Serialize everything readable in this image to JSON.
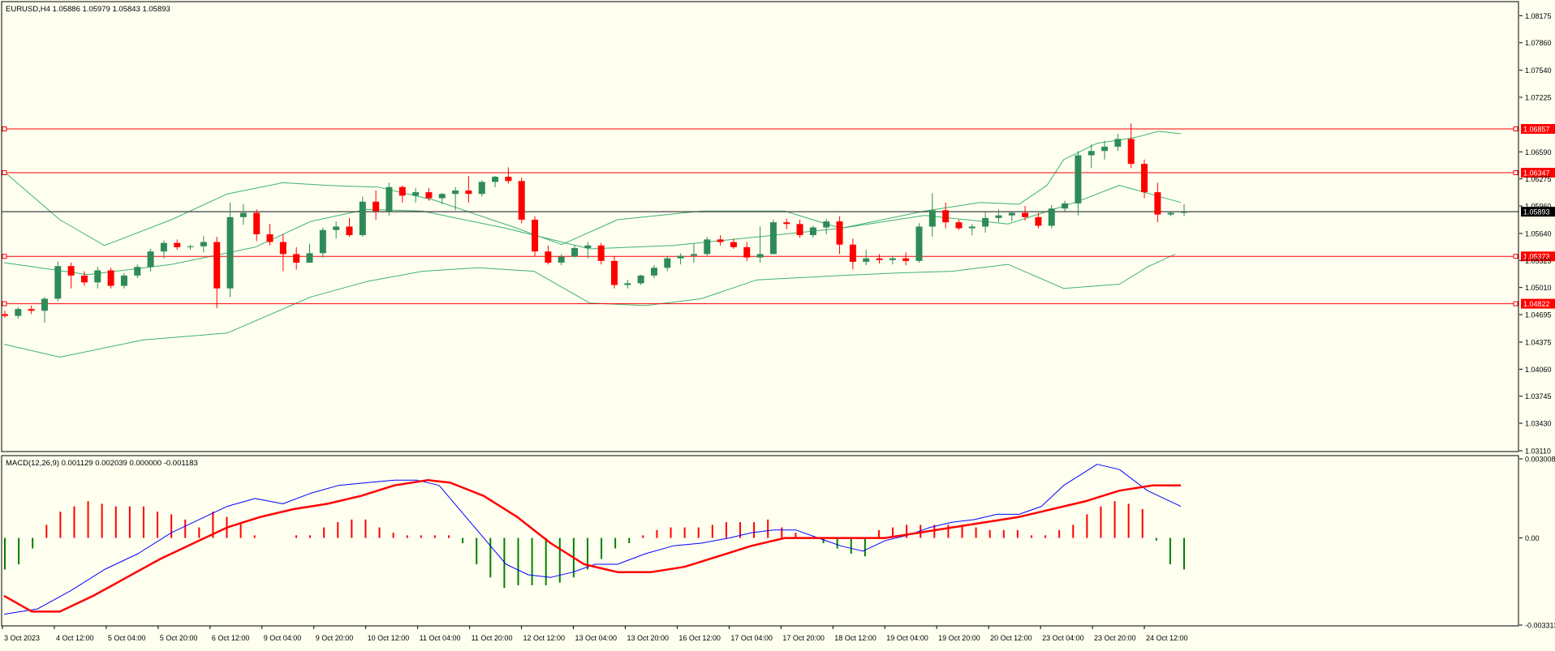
{
  "main_header": "EURUSD,H4  1.05886 1.05979 1.05843 1.05893",
  "macd_header": "MACD(12,26,9) 0.001129 0.002039 0.000000 -0.001183",
  "colors": {
    "background": "#fffff0",
    "bull_candle": "#2e8b57",
    "bear_candle": "#ff0000",
    "bollinger": "#3cb371",
    "level_line": "#ff0000",
    "current_price_line": "#404040",
    "macd_line": "#0000ff",
    "signal_line": "#ff0000",
    "hist_up": "#ff0000",
    "hist_down": "#008000",
    "axis_label_bg_level": "#ff0000",
    "axis_label_bg_current": "#000000"
  },
  "chart_data": [
    {
      "type": "candlestick",
      "symbol": "EURUSD",
      "timeframe": "H4",
      "ylim": [
        1.0311,
        1.0832
      ],
      "y_ticks": [
        "1.08175",
        "1.07860",
        "1.07540",
        "1.07225",
        "1.06590",
        "1.06275",
        "1.05960",
        "1.05640",
        "1.05325",
        "1.05010",
        "1.04695",
        "1.04375",
        "1.04060",
        "1.03745",
        "1.03430",
        "1.03110"
      ],
      "x_ticks": [
        "3 Oct 2023",
        "4 Oct 12:00",
        "5 Oct 04:00",
        "5 Oct 20:00",
        "6 Oct 12:00",
        "9 Oct 04:00",
        "9 Oct 20:00",
        "10 Oct 12:00",
        "11 Oct 04:00",
        "11 Oct 20:00",
        "12 Oct 12:00",
        "13 Oct 04:00",
        "13 Oct 20:00",
        "16 Oct 12:00",
        "17 Oct 04:00",
        "17 Oct 20:00",
        "18 Oct 12:00",
        "19 Oct 04:00",
        "19 Oct 20:00",
        "20 Oct 12:00",
        "23 Oct 04:00",
        "23 Oct 20:00",
        "24 Oct 12:00"
      ],
      "horizontal_levels": [
        "1.06857",
        "1.06347",
        "1.05373",
        "1.04822"
      ],
      "current_price": "1.05893",
      "candles": [
        [
          1.047,
          1.0474,
          1.0466,
          1.0468
        ],
        [
          1.0468,
          1.0478,
          1.0465,
          1.0476
        ],
        [
          1.0476,
          1.048,
          1.047,
          1.0474
        ],
        [
          1.0474,
          1.049,
          1.046,
          1.0488
        ],
        [
          1.0488,
          1.0531,
          1.0485,
          1.0526
        ],
        [
          1.0526,
          1.053,
          1.05,
          1.0515
        ],
        [
          1.0515,
          1.052,
          1.0503,
          1.0507
        ],
        [
          1.0507,
          1.0525,
          1.05,
          1.0521
        ],
        [
          1.0521,
          1.0524,
          1.05,
          1.0503
        ],
        [
          1.0503,
          1.0518,
          1.05,
          1.0515
        ],
        [
          1.0515,
          1.0528,
          1.0512,
          1.0525
        ],
        [
          1.0525,
          1.0546,
          1.052,
          1.0543
        ],
        [
          1.0543,
          1.0556,
          1.0535,
          1.0553
        ],
        [
          1.0553,
          1.0557,
          1.0545,
          1.0548
        ],
        [
          1.0548,
          1.0551,
          1.0545,
          1.0549
        ],
        [
          1.0549,
          1.0561,
          1.0542,
          1.0554
        ],
        [
          1.0554,
          1.056,
          1.0477,
          1.05
        ],
        [
          1.05,
          1.06,
          1.049,
          1.0583
        ],
        [
          1.0583,
          1.0598,
          1.0574,
          1.0588
        ],
        [
          1.0588,
          1.0592,
          1.0555,
          1.0563
        ],
        [
          1.0563,
          1.0575,
          1.055,
          1.0554
        ],
        [
          1.0554,
          1.0563,
          1.052,
          1.054
        ],
        [
          1.054,
          1.0548,
          1.0522,
          1.053
        ],
        [
          1.053,
          1.0552,
          1.053,
          1.0541
        ],
        [
          1.0541,
          1.0571,
          1.0536,
          1.0568
        ],
        [
          1.0568,
          1.0578,
          1.0558,
          1.0572
        ],
        [
          1.0572,
          1.0582,
          1.056,
          1.0562
        ],
        [
          1.0562,
          1.0607,
          1.056,
          1.0601
        ],
        [
          1.0601,
          1.0614,
          1.058,
          1.059
        ],
        [
          1.059,
          1.0623,
          1.0585,
          1.0618
        ],
        [
          1.0618,
          1.062,
          1.06,
          1.0608
        ],
        [
          1.0608,
          1.0617,
          1.06,
          1.0612
        ],
        [
          1.0612,
          1.0617,
          1.0602,
          1.0605
        ],
        [
          1.0605,
          1.0611,
          1.0598,
          1.061
        ],
        [
          1.061,
          1.0618,
          1.0591,
          1.0614
        ],
        [
          1.0614,
          1.0631,
          1.06,
          1.061
        ],
        [
          1.061,
          1.0626,
          1.0607,
          1.0624
        ],
        [
          1.0624,
          1.0631,
          1.0618,
          1.063
        ],
        [
          1.063,
          1.0641,
          1.0622,
          1.0625
        ],
        [
          1.0625,
          1.0629,
          1.0576,
          1.058
        ],
        [
          1.058,
          1.0584,
          1.0537,
          1.0543
        ],
        [
          1.0543,
          1.055,
          1.0528,
          1.053
        ],
        [
          1.053,
          1.054,
          1.0527,
          1.0537
        ],
        [
          1.0537,
          1.055,
          1.0536,
          1.0547
        ],
        [
          1.0547,
          1.0554,
          1.0535,
          1.055
        ],
        [
          1.055,
          1.0553,
          1.0528,
          1.0532
        ],
        [
          1.0532,
          1.0537,
          1.05,
          1.0504
        ],
        [
          1.0504,
          1.051,
          1.05,
          1.0506
        ],
        [
          1.0506,
          1.0516,
          1.0504,
          1.0515
        ],
        [
          1.0515,
          1.0527,
          1.0512,
          1.0524
        ],
        [
          1.0524,
          1.0537,
          1.052,
          1.0535
        ],
        [
          1.0535,
          1.0541,
          1.0528,
          1.0538
        ],
        [
          1.0538,
          1.0552,
          1.053,
          1.054
        ],
        [
          1.054,
          1.056,
          1.0538,
          1.0557
        ],
        [
          1.0557,
          1.0562,
          1.055,
          1.0554
        ],
        [
          1.0554,
          1.0558,
          1.0546,
          1.0548
        ],
        [
          1.0548,
          1.0554,
          1.0532,
          1.0536
        ],
        [
          1.0536,
          1.0572,
          1.053,
          1.054
        ],
        [
          1.054,
          1.058,
          1.054,
          1.0577
        ],
        [
          1.0577,
          1.0581,
          1.0569,
          1.0575
        ],
        [
          1.0575,
          1.058,
          1.0559,
          1.0562
        ],
        [
          1.0562,
          1.0573,
          1.0559,
          1.0571
        ],
        [
          1.0571,
          1.0581,
          1.0563,
          1.0578
        ],
        [
          1.0578,
          1.0584,
          1.054,
          1.0551
        ],
        [
          1.0551,
          1.0558,
          1.0522,
          1.0531
        ],
        [
          1.0531,
          1.0545,
          1.0527,
          1.0535
        ],
        [
          1.0535,
          1.054,
          1.0529,
          1.0533
        ],
        [
          1.0533,
          1.0538,
          1.0528,
          1.0535
        ],
        [
          1.0535,
          1.0542,
          1.0527,
          1.0532
        ],
        [
          1.0532,
          1.0576,
          1.053,
          1.0572
        ],
        [
          1.0572,
          1.0611,
          1.056,
          1.0591
        ],
        [
          1.0591,
          1.06,
          1.057,
          1.0577
        ],
        [
          1.0577,
          1.058,
          1.0568,
          1.057
        ],
        [
          1.057,
          1.0575,
          1.0562,
          1.0572
        ],
        [
          1.0572,
          1.0589,
          1.0565,
          1.0582
        ],
        [
          1.0582,
          1.0592,
          1.0577,
          1.0585
        ],
        [
          1.0585,
          1.059,
          1.0578,
          1.0588
        ],
        [
          1.0588,
          1.0596,
          1.0579,
          1.0583
        ],
        [
          1.0583,
          1.0588,
          1.057,
          1.0573
        ],
        [
          1.0573,
          1.0597,
          1.057,
          1.0593
        ],
        [
          1.0593,
          1.0602,
          1.059,
          1.0599
        ],
        [
          1.0599,
          1.066,
          1.0585,
          1.0655
        ],
        [
          1.0655,
          1.0668,
          1.064,
          1.066
        ],
        [
          1.066,
          1.0672,
          1.065,
          1.0665
        ],
        [
          1.0665,
          1.068,
          1.066,
          1.0674
        ],
        [
          1.0674,
          1.0692,
          1.064,
          1.0645
        ],
        [
          1.0645,
          1.065,
          1.0605,
          1.0612
        ],
        [
          1.0612,
          1.0623,
          1.0577,
          1.0586
        ],
        [
          1.0586,
          1.059,
          1.0584,
          1.0588
        ],
        [
          1.0588,
          1.0598,
          1.0584,
          1.0589
        ]
      ],
      "bollinger_upper": [
        [
          0,
          1.0636
        ],
        [
          10,
          1.058
        ],
        [
          18,
          1.055
        ],
        [
          30,
          1.058
        ],
        [
          40,
          1.061
        ],
        [
          50,
          1.0623
        ],
        [
          58,
          1.062
        ],
        [
          62,
          1.0619
        ],
        [
          67,
          1.0618
        ],
        [
          77,
          1.0603
        ],
        [
          92,
          1.057
        ],
        [
          100,
          1.0551
        ],
        [
          110,
          1.058
        ],
        [
          125,
          1.059
        ],
        [
          140,
          1.059
        ],
        [
          150,
          1.057
        ],
        [
          165,
          1.059
        ],
        [
          175,
          1.06
        ],
        [
          182,
          1.0598
        ],
        [
          187,
          1.062
        ],
        [
          190,
          1.065
        ],
        [
          196,
          1.0669
        ],
        [
          203,
          1.0676
        ],
        [
          207,
          1.0683
        ],
        [
          211,
          1.068
        ]
      ],
      "bollinger_middle": [
        [
          0,
          1.053
        ],
        [
          15,
          1.0516
        ],
        [
          30,
          1.0528
        ],
        [
          45,
          1.0548
        ],
        [
          55,
          1.0578
        ],
        [
          65,
          1.0592
        ],
        [
          75,
          1.059
        ],
        [
          90,
          1.057
        ],
        [
          105,
          1.0546
        ],
        [
          120,
          1.055
        ],
        [
          135,
          1.056
        ],
        [
          150,
          1.057
        ],
        [
          165,
          1.0585
        ],
        [
          180,
          1.0575
        ],
        [
          192,
          1.06
        ],
        [
          200,
          1.062
        ],
        [
          211,
          1.06
        ]
      ],
      "bollinger_lower": [
        [
          0,
          1.0435
        ],
        [
          10,
          1.042
        ],
        [
          25,
          1.044
        ],
        [
          40,
          1.0448
        ],
        [
          55,
          1.049
        ],
        [
          65,
          1.0508
        ],
        [
          75,
          1.052
        ],
        [
          85,
          1.0524
        ],
        [
          95,
          1.052
        ],
        [
          105,
          1.0483
        ],
        [
          115,
          1.048
        ],
        [
          125,
          1.0488
        ],
        [
          135,
          1.051
        ],
        [
          150,
          1.0515
        ],
        [
          160,
          1.0518
        ],
        [
          170,
          1.052
        ],
        [
          180,
          1.0528
        ],
        [
          190,
          1.05
        ],
        [
          200,
          1.0505
        ],
        [
          205,
          1.0525
        ],
        [
          210,
          1.054
        ]
      ]
    },
    {
      "type": "macd",
      "ylim": [
        -0.003313,
        0.003008
      ],
      "y_ticks": [
        "0.003008",
        "0.00",
        "-0.003313"
      ],
      "macd": [
        [
          0,
          -0.0029
        ],
        [
          6,
          -0.0027
        ],
        [
          12,
          -0.002
        ],
        [
          18,
          -0.0012
        ],
        [
          24,
          -0.0006
        ],
        [
          30,
          0.0002
        ],
        [
          36,
          0.0008
        ],
        [
          40,
          0.0012
        ],
        [
          45,
          0.0015
        ],
        [
          50,
          0.0013
        ],
        [
          55,
          0.0017
        ],
        [
          60,
          0.002
        ],
        [
          65,
          0.0021
        ],
        [
          70,
          0.0022
        ],
        [
          74,
          0.0022
        ],
        [
          78,
          0.002
        ],
        [
          82,
          0.001
        ],
        [
          86,
          0.0
        ],
        [
          90,
          -0.001
        ],
        [
          94,
          -0.0014
        ],
        [
          98,
          -0.0015
        ],
        [
          102,
          -0.0013
        ],
        [
          106,
          -0.001
        ],
        [
          110,
          -0.001
        ],
        [
          115,
          -0.0006
        ],
        [
          120,
          -0.0003
        ],
        [
          125,
          -0.0002
        ],
        [
          130,
          0.0
        ],
        [
          134,
          0.0002
        ],
        [
          138,
          0.0003
        ],
        [
          142,
          0.0003
        ],
        [
          146,
          0.0
        ],
        [
          150,
          -0.0003
        ],
        [
          154,
          -0.0005
        ],
        [
          158,
          -0.0001
        ],
        [
          162,
          0.0001
        ],
        [
          166,
          0.0004
        ],
        [
          170,
          0.0006
        ],
        [
          174,
          0.0007
        ],
        [
          178,
          0.0009
        ],
        [
          182,
          0.0009
        ],
        [
          186,
          0.0012
        ],
        [
          190,
          0.002
        ],
        [
          196,
          0.0028
        ],
        [
          200,
          0.0026
        ],
        [
          205,
          0.0018
        ],
        [
          211,
          0.0012
        ]
      ],
      "signal": [
        [
          0,
          -0.0022
        ],
        [
          5,
          -0.0028
        ],
        [
          10,
          -0.0028
        ],
        [
          16,
          -0.0022
        ],
        [
          22,
          -0.0015
        ],
        [
          28,
          -0.0008
        ],
        [
          34,
          -0.0002
        ],
        [
          40,
          0.0004
        ],
        [
          46,
          0.0008
        ],
        [
          52,
          0.0011
        ],
        [
          58,
          0.0013
        ],
        [
          64,
          0.0016
        ],
        [
          70,
          0.002
        ],
        [
          76,
          0.0022
        ],
        [
          80,
          0.0021
        ],
        [
          86,
          0.0016
        ],
        [
          92,
          0.0008
        ],
        [
          98,
          -0.0002
        ],
        [
          104,
          -0.001
        ],
        [
          110,
          -0.0013
        ],
        [
          116,
          -0.0013
        ],
        [
          122,
          -0.0011
        ],
        [
          128,
          -0.0007
        ],
        [
          134,
          -0.0003
        ],
        [
          140,
          0.0
        ],
        [
          146,
          0.0
        ],
        [
          152,
          0.0
        ],
        [
          158,
          0.0
        ],
        [
          164,
          0.0002
        ],
        [
          170,
          0.0004
        ],
        [
          176,
          0.0006
        ],
        [
          182,
          0.0008
        ],
        [
          188,
          0.0011
        ],
        [
          194,
          0.0014
        ],
        [
          200,
          0.0018
        ],
        [
          206,
          0.002
        ],
        [
          211,
          0.002
        ]
      ],
      "histogram": [
        -0.0012,
        -0.001,
        -0.0004,
        0.0005,
        0.001,
        0.0012,
        0.0014,
        0.0013,
        0.0012,
        0.0012,
        0.0012,
        0.001,
        0.0009,
        0.0007,
        0.0004,
        0.001,
        0.0008,
        0.0006,
        0.0001,
        0.0,
        0.0,
        0.0001,
        0.0001,
        0.0004,
        0.0006,
        0.0007,
        0.0007,
        0.0004,
        0.0002,
        0.0001,
        0.0001,
        0.0001,
        0.0001,
        -0.0002,
        -0.001,
        -0.0015,
        -0.0019,
        -0.0018,
        -0.0018,
        -0.0018,
        -0.0017,
        -0.0015,
        -0.0012,
        -0.0008,
        -0.0004,
        -0.0002,
        0.0001,
        0.0003,
        0.0004,
        0.0004,
        0.0004,
        0.0005,
        0.0006,
        0.0006,
        0.0006,
        0.0007,
        0.0004,
        0.0002,
        0.0,
        -0.0002,
        -0.0004,
        -0.0006,
        -0.0007,
        0.0003,
        0.0004,
        0.0005,
        0.0005,
        0.0005,
        0.0005,
        0.0005,
        0.0004,
        0.0003,
        0.0003,
        0.0003,
        0.0001,
        0.0001,
        0.0003,
        0.0005,
        0.0009,
        0.0012,
        0.0014,
        0.0013,
        0.0011,
        -0.0001,
        -0.001,
        -0.0012
      ]
    }
  ]
}
